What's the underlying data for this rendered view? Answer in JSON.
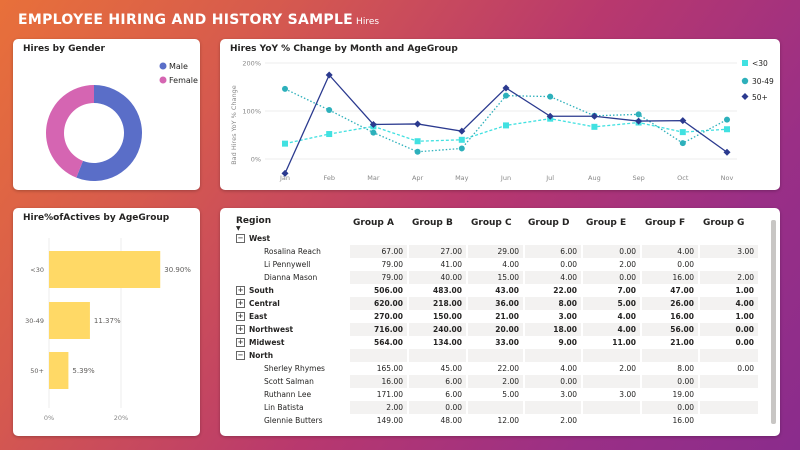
{
  "header": {
    "title": "EMPLOYEE HIRING AND HISTORY SAMPLE",
    "subtitle": "Hires"
  },
  "colors": {
    "male": "#5a6ec8",
    "female": "#d565b2",
    "under30": "#41e1e1",
    "age30_49": "#2db0bb",
    "age50plus": "#2b3a8f",
    "bar": "#ffd966"
  },
  "gender": {
    "title": "Hires by Gender",
    "chart_data": {
      "type": "pie",
      "categories": [
        "Male",
        "Female"
      ],
      "values": [
        56,
        44
      ]
    },
    "legend": [
      "Male",
      "Female"
    ]
  },
  "yoy": {
    "title": "Hires YoY % Change by Month and AgeGroup",
    "chart_data": {
      "type": "line",
      "x": [
        "Jan",
        "Feb",
        "Mar",
        "Apr",
        "May",
        "Jun",
        "Jul",
        "Aug",
        "Sep",
        "Oct",
        "Nov"
      ],
      "ylabel": "Bad Hires YoY % Change",
      "ylim": [
        -25,
        200
      ],
      "yticks": [
        "200%",
        "100%",
        "0%"
      ],
      "series": [
        {
          "name": "<30",
          "values": [
            32,
            52,
            68,
            37,
            40,
            70,
            84,
            67,
            76,
            56,
            62
          ]
        },
        {
          "name": "30-49",
          "values": [
            146,
            102,
            55,
            15,
            22,
            132,
            130,
            90,
            93,
            33,
            82
          ]
        },
        {
          "name": "50+",
          "values": [
            -30,
            175,
            72,
            73,
            58,
            148,
            89,
            89,
            79,
            80,
            14
          ]
        }
      ]
    },
    "legend": [
      "<30",
      "30-49",
      "50+"
    ]
  },
  "actives": {
    "title": "Hire%ofActives by AgeGroup",
    "chart_data": {
      "type": "bar",
      "categories": [
        "<30",
        "30-49",
        "50+"
      ],
      "values": [
        30.9,
        11.37,
        5.39
      ],
      "labels": [
        "30.90%",
        "11.37%",
        "5.39%"
      ],
      "xticks": [
        "0%",
        "20%"
      ],
      "xlim": [
        0,
        40
      ]
    }
  },
  "matrix": {
    "columns": [
      "Region",
      "Group A",
      "Group B",
      "Group C",
      "Group D",
      "Group E",
      "Group F",
      "Group G"
    ],
    "rows": [
      {
        "type": "group",
        "expand": "−",
        "label": "West",
        "cells": [
          "",
          "",
          "",
          "",
          "",
          "",
          ""
        ]
      },
      {
        "type": "child",
        "label": "Rosalina Reach",
        "cells": [
          "67.00",
          "27.00",
          "29.00",
          "6.00",
          "0.00",
          "4.00",
          "3.00"
        ]
      },
      {
        "type": "child",
        "label": "Li Pennywell",
        "cells": [
          "79.00",
          "41.00",
          "4.00",
          "0.00",
          "2.00",
          "0.00",
          ""
        ]
      },
      {
        "type": "child",
        "label": "Dianna Mason",
        "cells": [
          "79.00",
          "40.00",
          "15.00",
          "4.00",
          "0.00",
          "16.00",
          "2.00"
        ]
      },
      {
        "type": "group",
        "expand": "+",
        "label": "South",
        "cells": [
          "506.00",
          "483.00",
          "43.00",
          "22.00",
          "7.00",
          "47.00",
          "1.00"
        ]
      },
      {
        "type": "group",
        "expand": "+",
        "label": "Central",
        "cells": [
          "620.00",
          "218.00",
          "36.00",
          "8.00",
          "5.00",
          "26.00",
          "4.00"
        ]
      },
      {
        "type": "group",
        "expand": "+",
        "label": "East",
        "cells": [
          "270.00",
          "150.00",
          "21.00",
          "3.00",
          "4.00",
          "16.00",
          "1.00"
        ]
      },
      {
        "type": "group",
        "expand": "+",
        "label": "Northwest",
        "cells": [
          "716.00",
          "240.00",
          "20.00",
          "18.00",
          "4.00",
          "56.00",
          "0.00"
        ]
      },
      {
        "type": "group",
        "expand": "+",
        "label": "Midwest",
        "cells": [
          "564.00",
          "134.00",
          "33.00",
          "9.00",
          "11.00",
          "21.00",
          "0.00"
        ]
      },
      {
        "type": "group",
        "expand": "−",
        "label": "North",
        "cells": [
          "",
          "",
          "",
          "",
          "",
          "",
          ""
        ]
      },
      {
        "type": "child",
        "label": "Sherley Rhymes",
        "cells": [
          "165.00",
          "45.00",
          "22.00",
          "4.00",
          "2.00",
          "8.00",
          "0.00"
        ]
      },
      {
        "type": "child",
        "label": "Scott Salman",
        "cells": [
          "16.00",
          "6.00",
          "2.00",
          "0.00",
          "",
          "0.00",
          ""
        ]
      },
      {
        "type": "child",
        "label": "Ruthann Lee",
        "cells": [
          "171.00",
          "6.00",
          "5.00",
          "3.00",
          "3.00",
          "19.00",
          ""
        ]
      },
      {
        "type": "child",
        "label": "Lin Batista",
        "cells": [
          "2.00",
          "0.00",
          "",
          "",
          "",
          "0.00",
          ""
        ]
      },
      {
        "type": "child",
        "label": "Glennie Butters",
        "cells": [
          "149.00",
          "48.00",
          "12.00",
          "2.00",
          "",
          "16.00",
          ""
        ]
      }
    ]
  }
}
